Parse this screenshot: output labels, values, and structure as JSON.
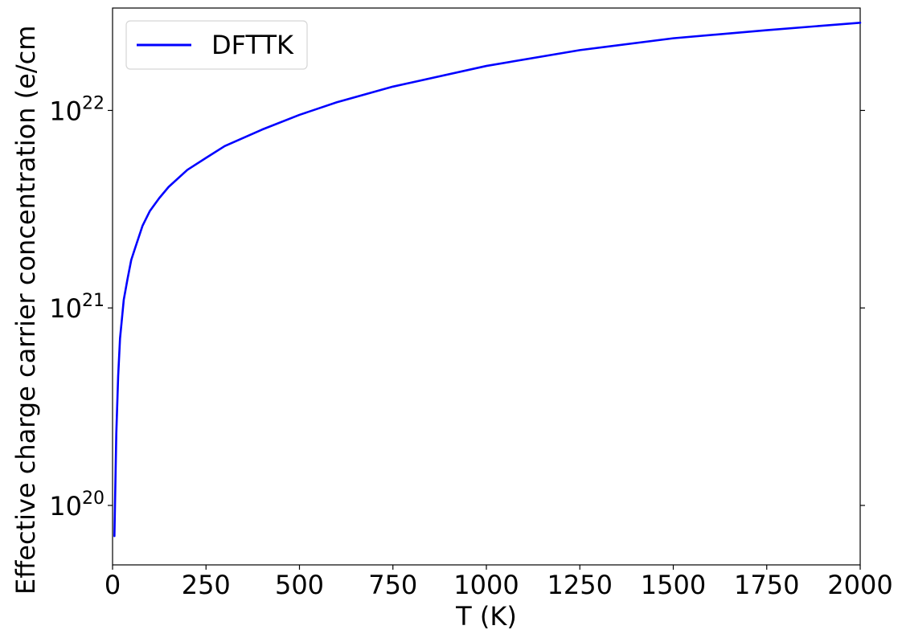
{
  "chart_data": {
    "type": "line",
    "title": "",
    "xlabel": "T (K)",
    "ylabel": "Effective charge carrier concentration (e/cm",
    "xlim": [
      0,
      2000
    ],
    "ylim": [
      5e+19,
      3.3e+22
    ],
    "yscale": "log",
    "grid": false,
    "legend_position": "top-left",
    "x_ticks": [
      0,
      250,
      500,
      750,
      1000,
      1250,
      1500,
      1750,
      2000
    ],
    "x_tick_labels": [
      "0",
      "250",
      "500",
      "750",
      "1000",
      "1250",
      "1500",
      "1750",
      "2000"
    ],
    "y_ticks": [
      1e+20,
      1e+21,
      1e+22
    ],
    "y_tick_labels": [
      {
        "base": "10",
        "exp": "20"
      },
      {
        "base": "10",
        "exp": "21"
      },
      {
        "base": "10",
        "exp": "22"
      }
    ],
    "series": [
      {
        "name": "DFTTK",
        "color": "#0000ff",
        "x": [
          5,
          10,
          15,
          20,
          30,
          40,
          50,
          60,
          80,
          100,
          125,
          150,
          200,
          250,
          300,
          400,
          500,
          600,
          750,
          1000,
          1250,
          1500,
          1750,
          2000
        ],
        "y": [
          7e+19,
          2.3e+20,
          4.5e+20,
          7e+20,
          1.1e+21,
          1.4e+21,
          1.75e+21,
          2e+21,
          2.6e+21,
          3.1e+21,
          3.6e+21,
          4.1e+21,
          5e+21,
          5.75e+21,
          6.6e+21,
          8e+21,
          9.5e+21,
          1.1e+22,
          1.32e+22,
          1.68e+22,
          2.02e+22,
          2.32e+22,
          2.55e+22,
          2.78e+22
        ]
      }
    ]
  }
}
